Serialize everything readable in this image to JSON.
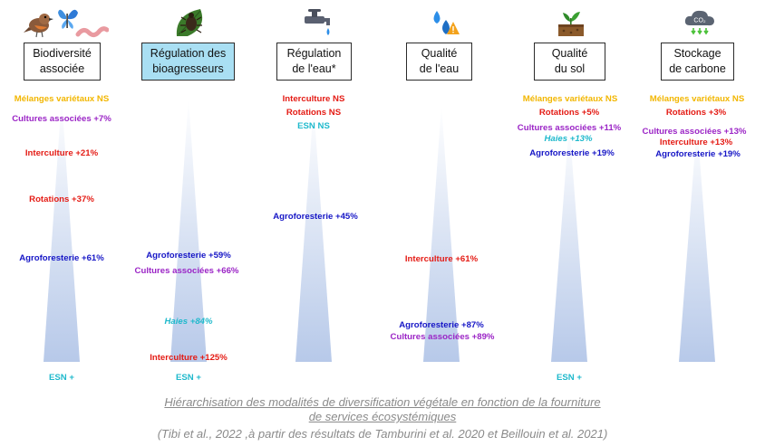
{
  "colors": {
    "ns": "#f2b600",
    "cultures": "#9b25c6",
    "interculture": "#e41b14",
    "rotations": "#e41b14",
    "agroforesterie": "#1616c6",
    "haies": "#1fb9cc",
    "esn": "#1fb9cc",
    "cone": "#b7c9e9",
    "highlight_box": "#a9dff3"
  },
  "columns": [
    {
      "icon": "bird-butterfly-worm-icon",
      "title_line1": "Biodiversité",
      "title_line2": "associée",
      "highlighted": false,
      "labels": [
        {
          "text": "Mélanges variétaux NS",
          "kind": "ns"
        },
        {
          "text": "Cultures associées +7%",
          "kind": "cultures"
        },
        {
          "text": "Interculture +21%",
          "kind": "interculture"
        },
        {
          "text": "Rotations +37%",
          "kind": "rotations"
        },
        {
          "text": "Agroforesterie +61%",
          "kind": "agroforesterie"
        },
        {
          "text": "ESN +",
          "kind": "esn"
        }
      ]
    },
    {
      "icon": "beetle-leaf-icon",
      "title_line1": "Régulation des",
      "title_line2": "bioagresseurs",
      "highlighted": true,
      "labels": [
        {
          "text": "Agroforesterie +59%",
          "kind": "agroforesterie"
        },
        {
          "text": "Cultures associées +66%",
          "kind": "cultures"
        },
        {
          "text": "Haies +84%",
          "kind": "haies"
        },
        {
          "text": "Interculture +125%",
          "kind": "interculture"
        },
        {
          "text": "ESN +",
          "kind": "esn"
        }
      ]
    },
    {
      "icon": "water-tap-icon",
      "title_line1": "Régulation",
      "title_line2": "de l'eau*",
      "highlighted": false,
      "labels": [
        {
          "text": "Interculture NS",
          "kind": "interculture"
        },
        {
          "text": "Rotations NS",
          "kind": "rotations"
        },
        {
          "text": "ESN NS",
          "kind": "esn"
        },
        {
          "text": "Agroforesterie +45%",
          "kind": "agroforesterie"
        }
      ]
    },
    {
      "icon": "water-drops-warning-icon",
      "title_line1": "Qualité",
      "title_line2": "de l'eau",
      "highlighted": false,
      "labels": [
        {
          "text": "Interculture +61%",
          "kind": "interculture"
        },
        {
          "text": "Agroforesterie +87%",
          "kind": "agroforesterie"
        },
        {
          "text": "Cultures associées +89%",
          "kind": "cultures"
        }
      ]
    },
    {
      "icon": "soil-sprout-icon",
      "title_line1": "Qualité",
      "title_line2": "du sol",
      "highlighted": false,
      "labels": [
        {
          "text": "Mélanges variétaux NS",
          "kind": "ns"
        },
        {
          "text": "Rotations +5%",
          "kind": "rotations"
        },
        {
          "text": "Cultures associées +11%",
          "kind": "cultures"
        },
        {
          "text": "Haies +13%",
          "kind": "haies"
        },
        {
          "text": "Agroforesterie +19%",
          "kind": "agroforesterie"
        },
        {
          "text": "ESN +",
          "kind": "esn"
        }
      ]
    },
    {
      "icon": "co2-cloud-icon",
      "icon_text": "CO₂",
      "title_line1": "Stockage",
      "title_line2": "de carbone",
      "highlighted": false,
      "labels": [
        {
          "text": "Mélanges variétaux NS",
          "kind": "ns"
        },
        {
          "text": "Rotations +3%",
          "kind": "rotations"
        },
        {
          "text": "Cultures associées +13%",
          "kind": "cultures"
        },
        {
          "text": "Interculture +13%",
          "kind": "interculture"
        },
        {
          "text": "Agroforesterie +19%",
          "kind": "agroforesterie"
        }
      ]
    }
  ],
  "caption": {
    "line1": "Hiérarchisation des modalités de diversification végétale en fonction  de la fourniture",
    "line2": "de services écosystémiques ",
    "line3": "(Tibi et al., 2022 ,à partir des résultats de Tamburini et al. 2020 et Beillouin et al. 2021)"
  }
}
